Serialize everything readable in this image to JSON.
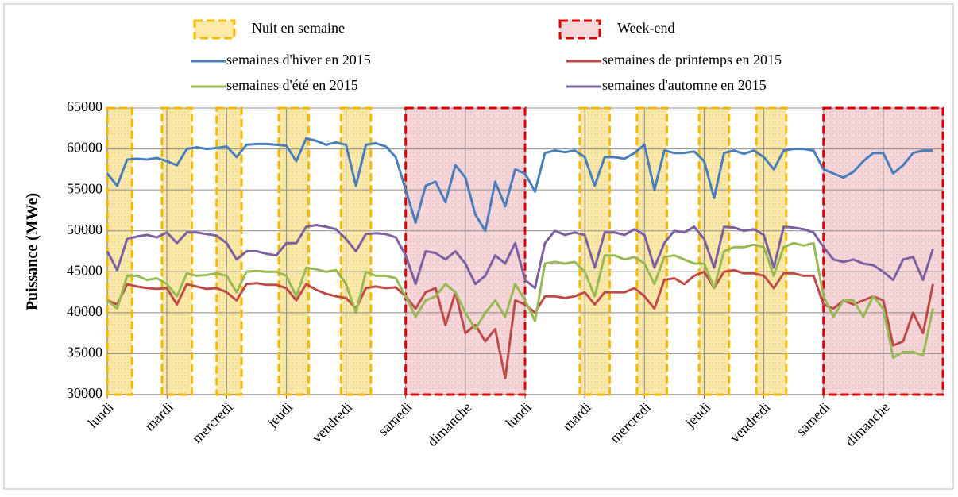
{
  "chart_data": {
    "type": "line",
    "y_label": "Puissance (MWe)",
    "xlim": [
      0,
      336
    ],
    "xticks": [
      {
        "value": 0,
        "label": "lundi"
      },
      {
        "value": 24,
        "label": "mardi"
      },
      {
        "value": 48,
        "label": "mercredi"
      },
      {
        "value": 72,
        "label": "jeudi"
      },
      {
        "value": 96,
        "label": "vendredi"
      },
      {
        "value": 120,
        "label": "samedi"
      },
      {
        "value": 144,
        "label": "dimanche"
      },
      {
        "value": 168,
        "label": "lundi"
      },
      {
        "value": 192,
        "label": "mardi"
      },
      {
        "value": 216,
        "label": "mercredi"
      },
      {
        "value": 240,
        "label": "jeudi"
      },
      {
        "value": 264,
        "label": "vendredi"
      },
      {
        "value": 288,
        "label": "samedi"
      },
      {
        "value": 312,
        "label": "dimanche"
      }
    ],
    "ylim": [
      30000,
      65000
    ],
    "yticks": [
      30000,
      35000,
      40000,
      45000,
      50000,
      55000,
      60000,
      65000
    ],
    "grid": true,
    "bands": [
      {
        "name": "Nuit en semaine",
        "color": "#f5b800",
        "fill": "#fbe9a8",
        "ranges": [
          [
            0,
            10
          ],
          [
            22,
            34
          ],
          [
            44,
            54
          ],
          [
            69,
            81
          ],
          [
            94,
            106
          ],
          [
            190,
            202
          ],
          [
            213,
            225
          ],
          [
            238,
            250
          ],
          [
            261,
            273
          ]
        ]
      },
      {
        "name": "Week-end",
        "color": "#e00000",
        "fill": "#f7d6da",
        "ranges": [
          [
            120,
            168
          ],
          [
            288,
            336
          ]
        ]
      }
    ],
    "x": [
      0,
      4,
      8,
      12,
      16,
      20,
      24,
      28,
      32,
      36,
      40,
      44,
      48,
      52,
      56,
      60,
      64,
      68,
      72,
      76,
      80,
      84,
      88,
      92,
      96,
      100,
      104,
      108,
      112,
      116,
      120,
      124,
      128,
      132,
      136,
      140,
      144,
      148,
      152,
      156,
      160,
      164,
      168,
      172,
      176,
      180,
      184,
      188,
      192,
      196,
      200,
      204,
      208,
      212,
      216,
      220,
      224,
      228,
      232,
      236,
      240,
      244,
      248,
      252,
      256,
      260,
      264,
      268,
      272,
      276,
      280,
      284,
      288,
      292,
      296,
      300,
      304,
      308,
      312,
      316,
      320,
      324,
      328,
      332
    ],
    "series": [
      {
        "name": "semaines d'hiver en 2015",
        "color": "#4a7ebb",
        "values": [
          57000,
          55500,
          58700,
          58800,
          58700,
          58900,
          58500,
          58000,
          60000,
          60200,
          60000,
          60100,
          60300,
          59000,
          60500,
          60600,
          60600,
          60500,
          60400,
          58500,
          61300,
          61000,
          60500,
          60800,
          60500,
          55500,
          60500,
          60700,
          60300,
          59000,
          55000,
          51000,
          55500,
          56000,
          53500,
          58000,
          56500,
          52000,
          50000,
          56000,
          53000,
          57500,
          57000,
          54800,
          59500,
          59800,
          59600,
          59800,
          59000,
          55500,
          59000,
          59000,
          58800,
          59500,
          60500,
          55000,
          59800,
          59500,
          59500,
          59700,
          58500,
          54000,
          59500,
          59800,
          59400,
          59800,
          59000,
          57500,
          59800,
          60000,
          60000,
          59800,
          57500,
          57000,
          56500,
          57200,
          58500,
          59500,
          59500,
          57000,
          58000,
          59500,
          59800,
          59800
        ]
      },
      {
        "name": "semaines de printemps en 2015",
        "color": "#be4b48",
        "values": [
          41500,
          41000,
          43500,
          43200,
          43000,
          42900,
          43000,
          41000,
          43500,
          43200,
          42900,
          43000,
          42500,
          41500,
          43500,
          43600,
          43400,
          43400,
          43000,
          41500,
          43500,
          42800,
          42300,
          42000,
          41800,
          40500,
          43000,
          43200,
          43000,
          43100,
          42000,
          40500,
          42500,
          43000,
          38500,
          42500,
          37500,
          38500,
          36500,
          38000,
          32000,
          41500,
          41000,
          40000,
          42000,
          42000,
          41800,
          42000,
          42500,
          41000,
          42500,
          42500,
          42500,
          43000,
          42000,
          40500,
          44000,
          44200,
          43500,
          44500,
          45000,
          43000,
          45000,
          45200,
          44800,
          44800,
          44500,
          43000,
          44800,
          44800,
          44500,
          44500,
          41000,
          40500,
          41500,
          41000,
          41500,
          42000,
          41500,
          36000,
          36500,
          40000,
          37500,
          43500
        ]
      },
      {
        "name": "semaines d'été en 2015",
        "color": "#98b954",
        "values": [
          41500,
          40500,
          44500,
          44500,
          44000,
          44200,
          43500,
          42000,
          44800,
          44500,
          44600,
          44800,
          44500,
          42500,
          45000,
          45100,
          45000,
          45000,
          44500,
          42000,
          45500,
          45300,
          45000,
          45200,
          43500,
          40000,
          45000,
          44500,
          44500,
          44200,
          42000,
          39500,
          41500,
          42000,
          43500,
          42500,
          40000,
          38000,
          40000,
          41500,
          39500,
          43500,
          41500,
          39000,
          46000,
          46200,
          46000,
          46200,
          45000,
          42000,
          47000,
          47000,
          46500,
          46800,
          46000,
          43500,
          46800,
          47000,
          46500,
          46000,
          46000,
          43000,
          47500,
          48000,
          48000,
          48300,
          48000,
          44500,
          48000,
          48500,
          48200,
          48500,
          42000,
          39500,
          41500,
          41500,
          39500,
          42000,
          40500,
          34500,
          35200,
          35200,
          34800,
          40500
        ]
      },
      {
        "name": "semaines d'automne en 2015",
        "color": "#7d60a0",
        "values": [
          47500,
          45200,
          49000,
          49300,
          49500,
          49200,
          49800,
          48500,
          49800,
          49800,
          49600,
          49400,
          48500,
          46500,
          47500,
          47500,
          47200,
          47000,
          48500,
          48500,
          50500,
          50700,
          50500,
          50200,
          49000,
          47500,
          49600,
          49700,
          49600,
          49200,
          47000,
          43500,
          47500,
          47300,
          46500,
          47500,
          46000,
          43500,
          44500,
          47000,
          46000,
          48500,
          44000,
          43000,
          48500,
          50000,
          49500,
          49800,
          49500,
          45500,
          49800,
          49800,
          49500,
          50200,
          49500,
          45500,
          48500,
          50000,
          49800,
          50500,
          49000,
          45500,
          50500,
          50400,
          50000,
          50200,
          49500,
          45500,
          50500,
          50400,
          50200,
          49800,
          48000,
          46500,
          46200,
          46500,
          46000,
          45800,
          45000,
          44000,
          46500,
          46800,
          44000,
          47800
        ]
      }
    ]
  }
}
